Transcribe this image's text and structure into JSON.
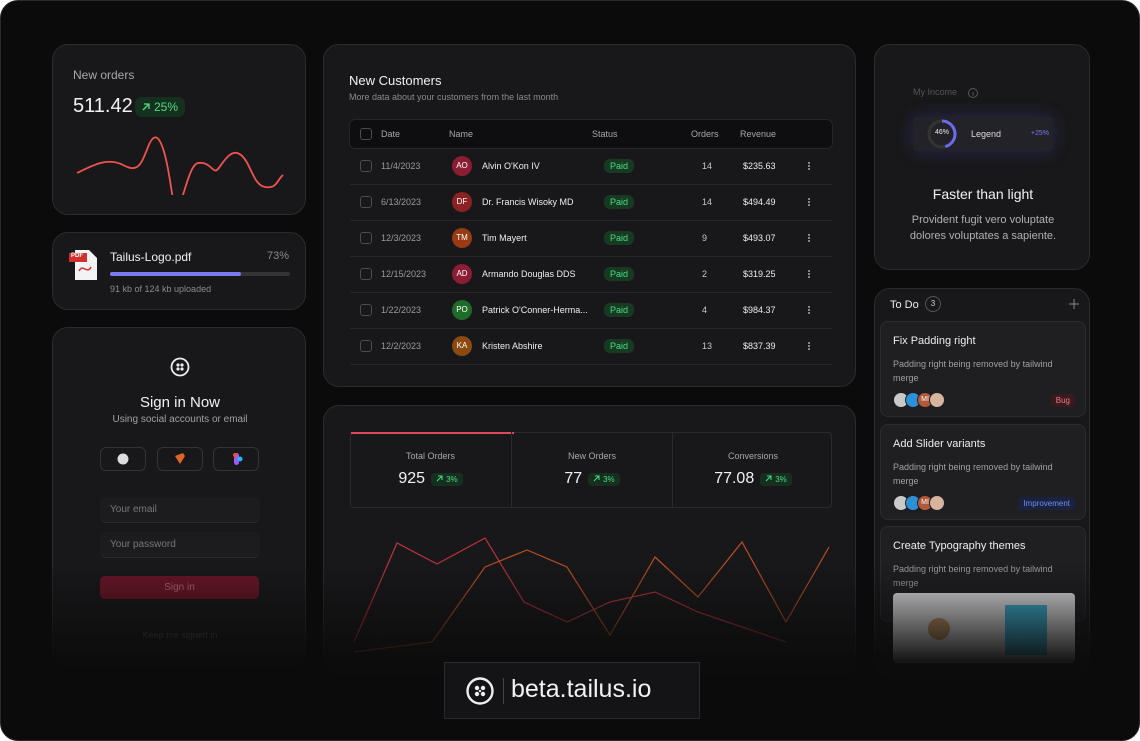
{
  "new_orders": {
    "label": "New orders",
    "value": "511.42",
    "change": "25%"
  },
  "upload": {
    "icon_label": "PDF",
    "file_name": "Tailus-Logo.pdf",
    "progress": 73,
    "progress_label": "73%",
    "status": "91 kb of 124 kb uploaded"
  },
  "sign_in": {
    "title": "Sign in Now",
    "subtitle": "Using social accounts or email",
    "email_placeholder": "Your email",
    "password_placeholder": "Your password",
    "button": "Sign in",
    "remember": "Keep me signed in"
  },
  "customers": {
    "title": "New Customers",
    "subtitle": "More data about your customers from the last month",
    "headers": [
      "Date",
      "Name",
      "Status",
      "Orders",
      "Revenue"
    ],
    "rows": [
      {
        "initials": "AO",
        "date": "11/4/2023",
        "name": "Alvin O'Kon IV",
        "status": "Paid",
        "orders": 14,
        "revenue": "$235.63"
      },
      {
        "initials": "DF",
        "date": "6/13/2023",
        "name": "Dr. Francis Wisoky MD",
        "status": "Paid",
        "orders": 14,
        "revenue": "$494.49"
      },
      {
        "initials": "TM",
        "date": "12/3/2023",
        "name": "Tim Mayert",
        "status": "Paid",
        "orders": 9,
        "revenue": "$493.07"
      },
      {
        "initials": "AD",
        "date": "12/15/2023",
        "name": "Armando Douglas DDS",
        "status": "Paid",
        "orders": 2,
        "revenue": "$319.25"
      },
      {
        "initials": "PO",
        "date": "1/22/2023",
        "name": "Patrick O'Conner-Herma...",
        "status": "Paid",
        "orders": 4,
        "revenue": "$984.37"
      },
      {
        "initials": "KA",
        "date": "12/2/2023",
        "name": "Kristen Abshire",
        "status": "Paid",
        "orders": 13,
        "revenue": "$837.39"
      }
    ]
  },
  "stats": [
    {
      "label": "Total Orders",
      "value": 925,
      "change": "3%"
    },
    {
      "label": "New Orders",
      "value": 77,
      "change": "3%"
    },
    {
      "label": "Conversions",
      "value": 77.08,
      "change": "3%"
    }
  ],
  "income": {
    "label": "My Income",
    "gauge": 46,
    "gauge_label": "46%",
    "legend": "Legend",
    "change": "+25%",
    "heading": "Faster than light",
    "text": "Provident fugit vero voluptate dolores voluptates a sapiente."
  },
  "todo": {
    "title": "To Do",
    "count": "3",
    "items": [
      {
        "title": "Fix Padding right",
        "description": "Padding right being removed by tailwind merge",
        "avatar_label": "MI",
        "tag": "Bug"
      },
      {
        "title": "Add Slider variants",
        "description": "Padding right being removed by tailwind merge",
        "avatar_label": "MI",
        "tag": "Improvement"
      },
      {
        "title": "Create Typography themes",
        "description": "Padding right being removed by tailwind merge"
      }
    ]
  },
  "badge": {
    "text": "beta.tailus.io"
  }
}
